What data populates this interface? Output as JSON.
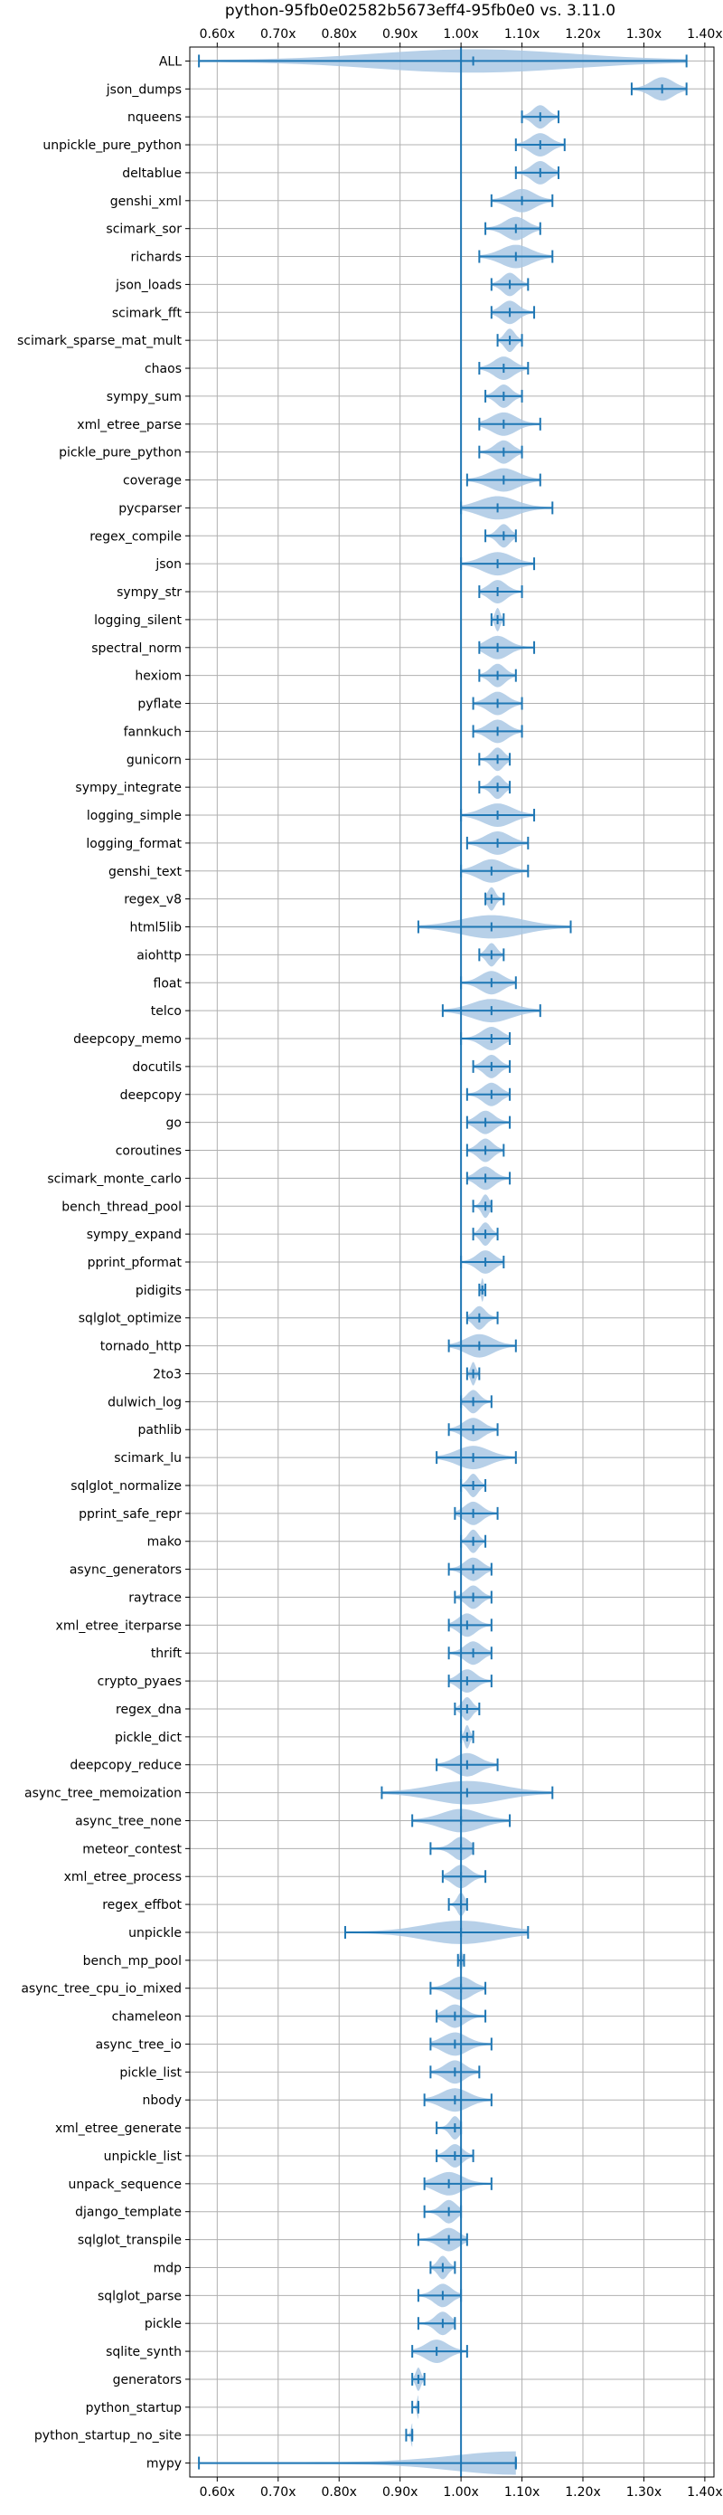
{
  "chart_data": {
    "type": "violin",
    "title": "python-95fb0e02582b5673eff4-95fb0e0 vs. 3.11.0",
    "x_tick_labels": [
      "0.60x",
      "0.70x",
      "0.80x",
      "0.90x",
      "1.00x",
      "1.10x",
      "1.20x",
      "1.30x",
      "1.40x"
    ],
    "x_ticks": [
      0.6,
      0.7,
      0.8,
      0.9,
      1.0,
      1.1,
      1.2,
      1.3,
      1.4
    ],
    "xlim": [
      0.555,
      1.415
    ],
    "reference_line": 1.0,
    "grid": true,
    "colors": {
      "violin": "#aac8e4",
      "stat": "#1f77b4",
      "grid": "#b0b0b0"
    },
    "benchmarks": [
      {
        "name": "ALL",
        "mean": 1.02,
        "min": 0.57,
        "max": 1.37
      },
      {
        "name": "json_dumps",
        "mean": 1.33,
        "min": 1.28,
        "max": 1.37
      },
      {
        "name": "nqueens",
        "mean": 1.13,
        "min": 1.1,
        "max": 1.16
      },
      {
        "name": "unpickle_pure_python",
        "mean": 1.13,
        "min": 1.09,
        "max": 1.17
      },
      {
        "name": "deltablue",
        "mean": 1.13,
        "min": 1.09,
        "max": 1.16
      },
      {
        "name": "genshi_xml",
        "mean": 1.1,
        "min": 1.05,
        "max": 1.15
      },
      {
        "name": "scimark_sor",
        "mean": 1.09,
        "min": 1.04,
        "max": 1.13
      },
      {
        "name": "richards",
        "mean": 1.09,
        "min": 1.03,
        "max": 1.15
      },
      {
        "name": "json_loads",
        "mean": 1.08,
        "min": 1.05,
        "max": 1.11
      },
      {
        "name": "scimark_fft",
        "mean": 1.08,
        "min": 1.05,
        "max": 1.12
      },
      {
        "name": "scimark_sparse_mat_mult",
        "mean": 1.08,
        "min": 1.06,
        "max": 1.1
      },
      {
        "name": "chaos",
        "mean": 1.07,
        "min": 1.03,
        "max": 1.11
      },
      {
        "name": "sympy_sum",
        "mean": 1.07,
        "min": 1.04,
        "max": 1.1
      },
      {
        "name": "xml_etree_parse",
        "mean": 1.07,
        "min": 1.03,
        "max": 1.13
      },
      {
        "name": "pickle_pure_python",
        "mean": 1.07,
        "min": 1.03,
        "max": 1.1
      },
      {
        "name": "coverage",
        "mean": 1.07,
        "min": 1.01,
        "max": 1.13
      },
      {
        "name": "pycparser",
        "mean": 1.06,
        "min": 1.0,
        "max": 1.15
      },
      {
        "name": "regex_compile",
        "mean": 1.07,
        "min": 1.04,
        "max": 1.09
      },
      {
        "name": "json",
        "mean": 1.06,
        "min": 1.0,
        "max": 1.12
      },
      {
        "name": "sympy_str",
        "mean": 1.06,
        "min": 1.03,
        "max": 1.1
      },
      {
        "name": "logging_silent",
        "mean": 1.06,
        "min": 1.05,
        "max": 1.07
      },
      {
        "name": "spectral_norm",
        "mean": 1.06,
        "min": 1.03,
        "max": 1.12
      },
      {
        "name": "hexiom",
        "mean": 1.06,
        "min": 1.03,
        "max": 1.09
      },
      {
        "name": "pyflate",
        "mean": 1.06,
        "min": 1.02,
        "max": 1.1
      },
      {
        "name": "fannkuch",
        "mean": 1.06,
        "min": 1.02,
        "max": 1.1
      },
      {
        "name": "gunicorn",
        "mean": 1.06,
        "min": 1.03,
        "max": 1.08
      },
      {
        "name": "sympy_integrate",
        "mean": 1.06,
        "min": 1.03,
        "max": 1.08
      },
      {
        "name": "logging_simple",
        "mean": 1.06,
        "min": 1.0,
        "max": 1.12
      },
      {
        "name": "logging_format",
        "mean": 1.06,
        "min": 1.01,
        "max": 1.11
      },
      {
        "name": "genshi_text",
        "mean": 1.05,
        "min": 1.0,
        "max": 1.11
      },
      {
        "name": "regex_v8",
        "mean": 1.05,
        "min": 1.04,
        "max": 1.07
      },
      {
        "name": "html5lib",
        "mean": 1.05,
        "min": 0.93,
        "max": 1.18
      },
      {
        "name": "aiohttp",
        "mean": 1.05,
        "min": 1.03,
        "max": 1.07
      },
      {
        "name": "float",
        "mean": 1.05,
        "min": 1.0,
        "max": 1.09
      },
      {
        "name": "telco",
        "mean": 1.05,
        "min": 0.97,
        "max": 1.13
      },
      {
        "name": "deepcopy_memo",
        "mean": 1.05,
        "min": 1.0,
        "max": 1.08
      },
      {
        "name": "docutils",
        "mean": 1.05,
        "min": 1.02,
        "max": 1.08
      },
      {
        "name": "deepcopy",
        "mean": 1.05,
        "min": 1.01,
        "max": 1.08
      },
      {
        "name": "go",
        "mean": 1.04,
        "min": 1.01,
        "max": 1.08
      },
      {
        "name": "coroutines",
        "mean": 1.04,
        "min": 1.01,
        "max": 1.07
      },
      {
        "name": "scimark_monte_carlo",
        "mean": 1.04,
        "min": 1.01,
        "max": 1.08
      },
      {
        "name": "bench_thread_pool",
        "mean": 1.04,
        "min": 1.02,
        "max": 1.05
      },
      {
        "name": "sympy_expand",
        "mean": 1.04,
        "min": 1.02,
        "max": 1.06
      },
      {
        "name": "pprint_pformat",
        "mean": 1.04,
        "min": 1.0,
        "max": 1.07
      },
      {
        "name": "pidigits",
        "mean": 1.035,
        "min": 1.03,
        "max": 1.04
      },
      {
        "name": "sqlglot_optimize",
        "mean": 1.03,
        "min": 1.01,
        "max": 1.06
      },
      {
        "name": "tornado_http",
        "mean": 1.03,
        "min": 0.98,
        "max": 1.09
      },
      {
        "name": "2to3",
        "mean": 1.02,
        "min": 1.01,
        "max": 1.03
      },
      {
        "name": "dulwich_log",
        "mean": 1.02,
        "min": 1.0,
        "max": 1.05
      },
      {
        "name": "pathlib",
        "mean": 1.02,
        "min": 0.98,
        "max": 1.06
      },
      {
        "name": "scimark_lu",
        "mean": 1.02,
        "min": 0.96,
        "max": 1.09
      },
      {
        "name": "sqlglot_normalize",
        "mean": 1.02,
        "min": 1.0,
        "max": 1.04
      },
      {
        "name": "pprint_safe_repr",
        "mean": 1.02,
        "min": 0.99,
        "max": 1.06
      },
      {
        "name": "mako",
        "mean": 1.02,
        "min": 1.0,
        "max": 1.04
      },
      {
        "name": "async_generators",
        "mean": 1.02,
        "min": 0.98,
        "max": 1.05
      },
      {
        "name": "raytrace",
        "mean": 1.02,
        "min": 0.99,
        "max": 1.05
      },
      {
        "name": "xml_etree_iterparse",
        "mean": 1.01,
        "min": 0.98,
        "max": 1.05
      },
      {
        "name": "thrift",
        "mean": 1.02,
        "min": 0.98,
        "max": 1.05
      },
      {
        "name": "crypto_pyaes",
        "mean": 1.01,
        "min": 0.98,
        "max": 1.05
      },
      {
        "name": "regex_dna",
        "mean": 1.01,
        "min": 0.99,
        "max": 1.03
      },
      {
        "name": "pickle_dict",
        "mean": 1.01,
        "min": 1.0,
        "max": 1.02
      },
      {
        "name": "deepcopy_reduce",
        "mean": 1.01,
        "min": 0.96,
        "max": 1.06
      },
      {
        "name": "async_tree_memoization",
        "mean": 1.01,
        "min": 0.87,
        "max": 1.15
      },
      {
        "name": "async_tree_none",
        "mean": 1.0,
        "min": 0.92,
        "max": 1.08
      },
      {
        "name": "meteor_contest",
        "mean": 1.0,
        "min": 0.95,
        "max": 1.02
      },
      {
        "name": "xml_etree_process",
        "mean": 1.0,
        "min": 0.97,
        "max": 1.04
      },
      {
        "name": "regex_effbot",
        "mean": 1.0,
        "min": 0.98,
        "max": 1.01
      },
      {
        "name": "unpickle",
        "mean": 1.0,
        "min": 0.81,
        "max": 1.11
      },
      {
        "name": "bench_mp_pool",
        "mean": 1.0,
        "min": 0.995,
        "max": 1.005
      },
      {
        "name": "async_tree_cpu_io_mixed",
        "mean": 1.0,
        "min": 0.95,
        "max": 1.04
      },
      {
        "name": "chameleon",
        "mean": 0.99,
        "min": 0.96,
        "max": 1.04
      },
      {
        "name": "async_tree_io",
        "mean": 0.99,
        "min": 0.95,
        "max": 1.05
      },
      {
        "name": "pickle_list",
        "mean": 0.99,
        "min": 0.95,
        "max": 1.03
      },
      {
        "name": "nbody",
        "mean": 0.99,
        "min": 0.94,
        "max": 1.05
      },
      {
        "name": "xml_etree_generate",
        "mean": 0.99,
        "min": 0.96,
        "max": 1.0
      },
      {
        "name": "unpickle_list",
        "mean": 0.99,
        "min": 0.96,
        "max": 1.02
      },
      {
        "name": "unpack_sequence",
        "mean": 0.98,
        "min": 0.94,
        "max": 1.05
      },
      {
        "name": "django_template",
        "mean": 0.98,
        "min": 0.94,
        "max": 1.0
      },
      {
        "name": "sqlglot_transpile",
        "mean": 0.98,
        "min": 0.93,
        "max": 1.01
      },
      {
        "name": "mdp",
        "mean": 0.97,
        "min": 0.95,
        "max": 0.99
      },
      {
        "name": "sqlglot_parse",
        "mean": 0.97,
        "min": 0.93,
        "max": 1.0
      },
      {
        "name": "pickle",
        "mean": 0.97,
        "min": 0.93,
        "max": 0.99
      },
      {
        "name": "sqlite_synth",
        "mean": 0.96,
        "min": 0.92,
        "max": 1.01
      },
      {
        "name": "generators",
        "mean": 0.93,
        "min": 0.92,
        "max": 0.94
      },
      {
        "name": "python_startup",
        "mean": 0.93,
        "min": 0.92,
        "max": 0.93
      },
      {
        "name": "python_startup_no_site",
        "mean": 0.92,
        "min": 0.91,
        "max": 0.92
      },
      {
        "name": "mypy",
        "mean": 1.09,
        "min": 0.57,
        "max": 1.09
      }
    ]
  }
}
